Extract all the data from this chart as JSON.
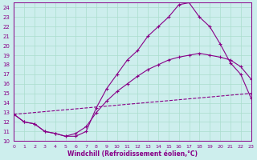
{
  "xlabel": "Windchill (Refroidissement éolien,°C)",
  "bg_color": "#cdeeed",
  "line_color": "#880088",
  "grid_color": "#aaddcc",
  "xmin": 0,
  "xmax": 23,
  "ymin": 10,
  "ymax": 24.5,
  "series1_x": [
    0,
    1,
    2,
    3,
    4,
    5,
    6,
    7,
    8,
    9,
    10,
    11,
    12,
    13,
    14,
    15,
    16,
    17,
    18,
    19,
    20,
    21,
    22,
    23
  ],
  "series1_y": [
    12.8,
    12.0,
    11.8,
    11.0,
    10.8,
    10.5,
    10.5,
    11.0,
    13.5,
    15.5,
    17.0,
    18.5,
    19.5,
    21.0,
    22.0,
    23.0,
    24.3,
    24.5,
    23.0,
    22.0,
    20.2,
    18.2,
    17.0,
    14.5
  ],
  "series2_x": [
    0,
    1,
    2,
    3,
    4,
    5,
    6,
    7,
    8,
    9,
    10,
    11,
    12,
    13,
    14,
    15,
    16,
    17,
    18,
    19,
    20,
    21,
    22,
    23
  ],
  "series2_y": [
    12.8,
    12.0,
    11.8,
    11.0,
    10.8,
    10.5,
    10.8,
    11.5,
    13.0,
    14.2,
    15.2,
    16.0,
    16.8,
    17.5,
    18.0,
    18.5,
    18.8,
    19.0,
    19.2,
    19.0,
    18.8,
    18.5,
    17.8,
    16.5
  ],
  "series3_x": [
    0,
    23
  ],
  "series3_y": [
    12.8,
    15.0
  ],
  "yticks": [
    10,
    11,
    12,
    13,
    14,
    15,
    16,
    17,
    18,
    19,
    20,
    21,
    22,
    23,
    24
  ],
  "xticks": [
    0,
    1,
    2,
    3,
    4,
    5,
    6,
    7,
    8,
    9,
    10,
    11,
    12,
    13,
    14,
    15,
    16,
    17,
    18,
    19,
    20,
    21,
    22,
    23
  ]
}
